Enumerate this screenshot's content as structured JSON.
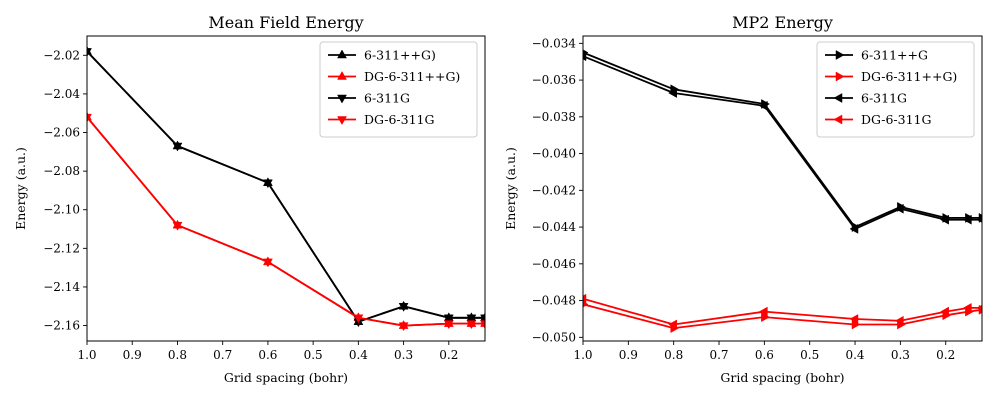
{
  "figure": {
    "background": "#ffffff"
  },
  "chart_data": [
    {
      "type": "line",
      "title": "Mean Field Energy",
      "xlabel": "Grid spacing (bohr)",
      "ylabel": "Energy (a.u.)",
      "xlim": [
        1.0,
        0.12
      ],
      "ylim": [
        -2.168,
        -2.01
      ],
      "x_inverted": true,
      "xticks": [
        1.0,
        0.9,
        0.8,
        0.7,
        0.6,
        0.5,
        0.4,
        0.3,
        0.2
      ],
      "xtick_labels": [
        "1.0",
        "0.9",
        "0.8",
        "0.7",
        "0.6",
        "0.5",
        "0.4",
        "0.3",
        "0.2"
      ],
      "yticks": [
        -2.16,
        -2.14,
        -2.12,
        -2.1,
        -2.08,
        -2.06,
        -2.04,
        -2.02
      ],
      "ytick_labels": [
        "−2.16",
        "−2.14",
        "−2.12",
        "−2.10",
        "−2.08",
        "−2.06",
        "−2.04",
        "−2.02"
      ],
      "grid": false,
      "legend_position": "top-right",
      "series": [
        {
          "name": "6-311++G)",
          "color": "#000000",
          "marker": "triangle-up",
          "x": [
            1.0,
            0.8,
            0.6,
            0.4,
            0.3,
            0.2,
            0.15,
            0.12
          ],
          "y": [
            -2.018,
            -2.067,
            -2.086,
            -2.158,
            -2.15,
            -2.156,
            -2.156,
            -2.156
          ]
        },
        {
          "name": "DG-6-311++G)",
          "color": "#ff0000",
          "marker": "triangle-up",
          "x": [
            1.0,
            0.8,
            0.6,
            0.4,
            0.3,
            0.2,
            0.15,
            0.12
          ],
          "y": [
            -2.052,
            -2.108,
            -2.127,
            -2.156,
            -2.16,
            -2.159,
            -2.159,
            -2.159
          ]
        },
        {
          "name": "6-311G",
          "color": "#000000",
          "marker": "triangle-down",
          "x": [
            1.0,
            0.8,
            0.6,
            0.4,
            0.3,
            0.2,
            0.15,
            0.12
          ],
          "y": [
            -2.018,
            -2.067,
            -2.086,
            -2.158,
            -2.15,
            -2.156,
            -2.156,
            -2.156
          ]
        },
        {
          "name": "DG-6-311G",
          "color": "#ff0000",
          "marker": "triangle-down",
          "x": [
            1.0,
            0.8,
            0.6,
            0.4,
            0.3,
            0.2,
            0.15,
            0.12
          ],
          "y": [
            -2.052,
            -2.108,
            -2.127,
            -2.156,
            -2.16,
            -2.159,
            -2.159,
            -2.159
          ]
        }
      ]
    },
    {
      "type": "line",
      "title": "MP2 Energy",
      "xlabel": "Grid spacing (bohr)",
      "ylabel": "Energy (a.u.)",
      "xlim": [
        1.0,
        0.12
      ],
      "ylim": [
        -0.0502,
        -0.0336
      ],
      "x_inverted": true,
      "xticks": [
        1.0,
        0.9,
        0.8,
        0.7,
        0.6,
        0.5,
        0.4,
        0.3,
        0.2
      ],
      "xtick_labels": [
        "1.0",
        "0.9",
        "0.8",
        "0.7",
        "0.6",
        "0.5",
        "0.4",
        "0.3",
        "0.2"
      ],
      "yticks": [
        -0.05,
        -0.048,
        -0.046,
        -0.044,
        -0.042,
        -0.04,
        -0.038,
        -0.036,
        -0.034
      ],
      "ytick_labels": [
        "−0.050",
        "−0.048",
        "−0.046",
        "−0.044",
        "−0.042",
        "−0.040",
        "−0.038",
        "−0.036",
        "−0.034"
      ],
      "grid": false,
      "legend_position": "top-right",
      "series": [
        {
          "name": "6-311++G",
          "color": "#000000",
          "marker": "triangle-right",
          "x": [
            1.0,
            0.8,
            0.6,
            0.4,
            0.3,
            0.2,
            0.15,
            0.12
          ],
          "y": [
            -0.0345,
            -0.0365,
            -0.0373,
            -0.044,
            -0.0429,
            -0.0435,
            -0.0435,
            -0.0435
          ]
        },
        {
          "name": "DG-6-311++G)",
          "color": "#ff0000",
          "marker": "triangle-right",
          "x": [
            1.0,
            0.8,
            0.6,
            0.4,
            0.3,
            0.2,
            0.15,
            0.12
          ],
          "y": [
            -0.0482,
            -0.0495,
            -0.0489,
            -0.0493,
            -0.0493,
            -0.0488,
            -0.0486,
            -0.0485
          ]
        },
        {
          "name": "6-311G",
          "color": "#000000",
          "marker": "triangle-left",
          "x": [
            1.0,
            0.8,
            0.6,
            0.4,
            0.3,
            0.2,
            0.15,
            0.12
          ],
          "y": [
            -0.0347,
            -0.0367,
            -0.0374,
            -0.0441,
            -0.043,
            -0.0436,
            -0.0436,
            -0.0436
          ]
        },
        {
          "name": "DG-6-311G",
          "color": "#ff0000",
          "marker": "triangle-left",
          "x": [
            1.0,
            0.8,
            0.6,
            0.4,
            0.3,
            0.2,
            0.15,
            0.12
          ],
          "y": [
            -0.0479,
            -0.0493,
            -0.0486,
            -0.049,
            -0.0491,
            -0.0486,
            -0.0484,
            -0.0484
          ]
        }
      ]
    }
  ]
}
